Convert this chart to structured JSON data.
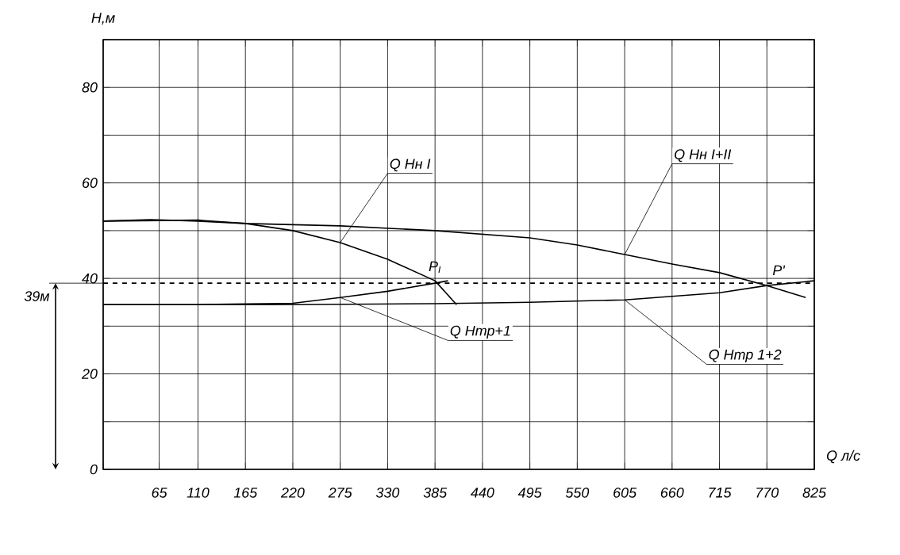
{
  "chart_data": {
    "type": "line",
    "xlabel": "Q л/с",
    "ylabel": "H,м",
    "xlim": [
      0,
      825
    ],
    "ylim": [
      0,
      90
    ],
    "xticks": [
      {
        "value": 0,
        "label": null
      },
      65,
      110,
      165,
      220,
      275,
      330,
      385,
      440,
      495,
      550,
      605,
      660,
      715,
      770,
      825
    ],
    "yticks": [
      0,
      {
        "value": 10,
        "label": null
      },
      20,
      {
        "value": 30,
        "label": null
      },
      40,
      {
        "value": 50,
        "label": null
      },
      60,
      {
        "value": 70,
        "label": null
      },
      80,
      {
        "value": 90,
        "label": null
      }
    ],
    "grid": true,
    "marker": "none",
    "line_style": "solid",
    "series": [
      {
        "name": "Q Hн I",
        "color": "#000000",
        "x": [
          0,
          55,
          110,
          165,
          220,
          275,
          330,
          385,
          410
        ],
        "values": [
          52,
          52.3,
          52,
          51.5,
          50,
          47.5,
          44,
          39.5,
          34.5
        ]
      },
      {
        "name": "Q Hн I+II",
        "color": "#000000",
        "x": [
          0,
          110,
          165,
          275,
          385,
          495,
          550,
          605,
          660,
          715,
          770,
          815
        ],
        "values": [
          52,
          52.2,
          51.5,
          51,
          50,
          48.5,
          47,
          45,
          43,
          41.2,
          38.5,
          36
        ]
      },
      {
        "name": "Q Hтр+1",
        "color": "#000000",
        "x": [
          0,
          110,
          220,
          275,
          330,
          385,
          400
        ],
        "values": [
          34.5,
          34.5,
          34.8,
          36,
          37.3,
          39,
          39.5
        ]
      },
      {
        "name": "Q Hтр 1+2",
        "color": "#000000",
        "x": [
          0,
          220,
          385,
          495,
          605,
          715,
          770,
          825
        ],
        "values": [
          34.5,
          34.5,
          34.7,
          35,
          35.5,
          37,
          38.5,
          39.5
        ]
      }
    ],
    "ref_lines": [
      {
        "axis": "y",
        "value": 39,
        "label": "39м",
        "line_style": "dashed",
        "color": "#000000"
      }
    ],
    "annotations": [
      {
        "text": "P$_{I}$",
        "x": 385,
        "y": 39
      },
      {
        "text": "P'",
        "x": 770,
        "y": 38.5
      }
    ]
  }
}
